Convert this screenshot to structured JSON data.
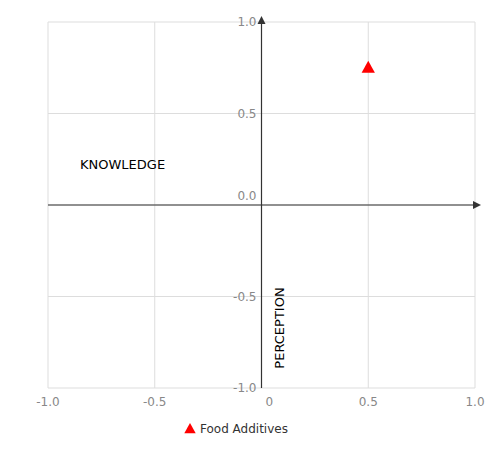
{
  "chart_data": {
    "type": "scatter",
    "annotations": [
      "KNOWLEDGE",
      "PERCEPTION"
    ],
    "series": [
      {
        "name": "Food Additives",
        "color": "#ff0000",
        "marker": "triangle",
        "x": [
          0.5
        ],
        "values": [
          0.75
        ]
      }
    ],
    "xlim": [
      -1.0,
      1.0
    ],
    "ylim": [
      -1.0,
      1.0
    ],
    "xticks": [
      {
        "value": -1.0,
        "label": "-1.0"
      },
      -0.5,
      0,
      0.5,
      {
        "value": 1.0,
        "label": "1.0"
      }
    ],
    "yticks": [
      {
        "value": -1.0,
        "label": "-1.0"
      },
      -0.5,
      {
        "value": 0.0,
        "label": "0.0"
      },
      0.5,
      {
        "value": 1.0,
        "label": "1.0"
      }
    ],
    "grid": true,
    "legend": "bottom"
  }
}
